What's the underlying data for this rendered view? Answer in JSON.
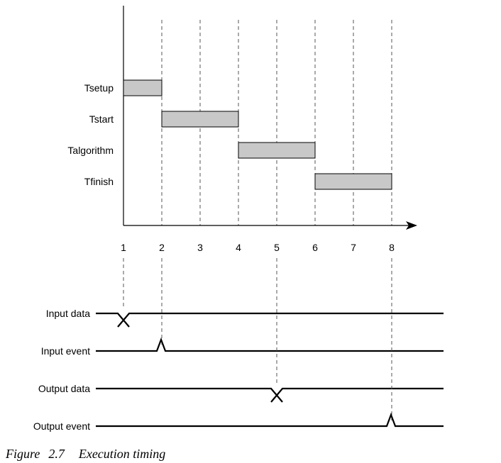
{
  "figure": {
    "caption_label": "Figure",
    "caption_number": "2.7",
    "caption_title": "Execution timing"
  },
  "timeline": {
    "ticks": [
      "1",
      "2",
      "3",
      "4",
      "5",
      "6",
      "7",
      "8"
    ],
    "bars": [
      {
        "label": "Tsetup",
        "start": 1,
        "end": 2
      },
      {
        "label": "Tstart",
        "start": 2,
        "end": 4
      },
      {
        "label": "Talgorithm",
        "start": 4,
        "end": 6
      },
      {
        "label": "Tfinish",
        "start": 6,
        "end": 8
      }
    ],
    "bar_fill": "#c8c8c8"
  },
  "signals": [
    {
      "label": "Input data",
      "type": "data-change",
      "at": 1
    },
    {
      "label": "Input event",
      "type": "pulse",
      "at": 2
    },
    {
      "label": "Output data",
      "type": "data-change",
      "at": 5
    },
    {
      "label": "Output event",
      "type": "pulse",
      "at": 8
    }
  ]
}
